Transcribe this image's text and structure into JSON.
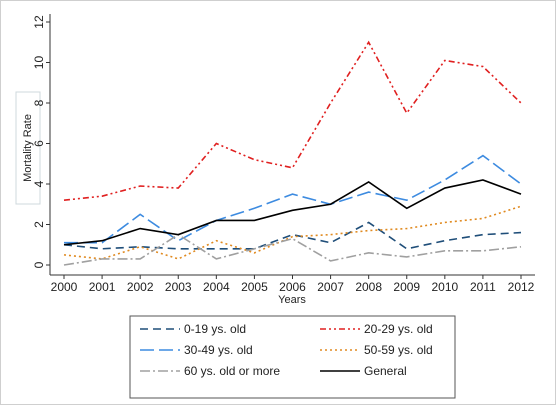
{
  "chart_data": {
    "type": "line",
    "x": [
      2000,
      2001,
      2002,
      2003,
      2004,
      2005,
      2006,
      2007,
      2008,
      2009,
      2010,
      2011,
      2012
    ],
    "xlim": [
      2000,
      2012
    ],
    "xticks": [
      2000,
      2001,
      2002,
      2003,
      2004,
      2005,
      2006,
      2007,
      2008,
      2009,
      2010,
      2011,
      2012
    ],
    "ylim": [
      0,
      12
    ],
    "yticks": [
      0,
      2,
      4,
      6,
      8,
      10,
      12
    ],
    "xlabel": "Years",
    "ylabel": "Mortality Rate",
    "grid": false,
    "series": [
      {
        "name": "0-19 ys. old",
        "color": "#1f4e79",
        "dash": "8,5",
        "values": [
          1.0,
          0.8,
          0.9,
          0.8,
          0.8,
          0.8,
          1.5,
          1.1,
          2.1,
          0.8,
          1.2,
          1.5,
          1.6
        ]
      },
      {
        "name": "20-29 ys. old",
        "color": "#e02020",
        "dash": "6,3,2,3,2,3",
        "values": [
          3.2,
          3.4,
          3.9,
          3.8,
          6.0,
          5.2,
          4.8,
          8.0,
          11.0,
          7.5,
          10.1,
          9.8,
          8.0
        ]
      },
      {
        "name": "30-49 ys. old",
        "color": "#3d8be0",
        "dash": "14,5",
        "values": [
          1.1,
          1.1,
          2.5,
          1.2,
          2.2,
          2.8,
          3.5,
          3.0,
          3.6,
          3.2,
          4.2,
          5.4,
          4.0
        ]
      },
      {
        "name": "50-59 ys. old",
        "color": "#e08a20",
        "dash": "2,3",
        "values": [
          0.5,
          0.3,
          0.9,
          0.3,
          1.2,
          0.6,
          1.4,
          1.5,
          1.7,
          1.8,
          2.1,
          2.3,
          2.9
        ]
      },
      {
        "name": "60 ys. old or more",
        "color": "#a0a0a0",
        "dash": "10,3,2,3",
        "values": [
          0.0,
          0.3,
          0.3,
          1.5,
          0.3,
          0.8,
          1.3,
          0.2,
          0.6,
          0.4,
          0.7,
          0.7,
          0.9
        ]
      },
      {
        "name": "General",
        "color": "#000000",
        "dash": "",
        "values": [
          1.0,
          1.2,
          1.8,
          1.5,
          2.2,
          2.2,
          2.7,
          3.0,
          4.1,
          2.8,
          3.8,
          4.2,
          3.5
        ]
      }
    ]
  }
}
